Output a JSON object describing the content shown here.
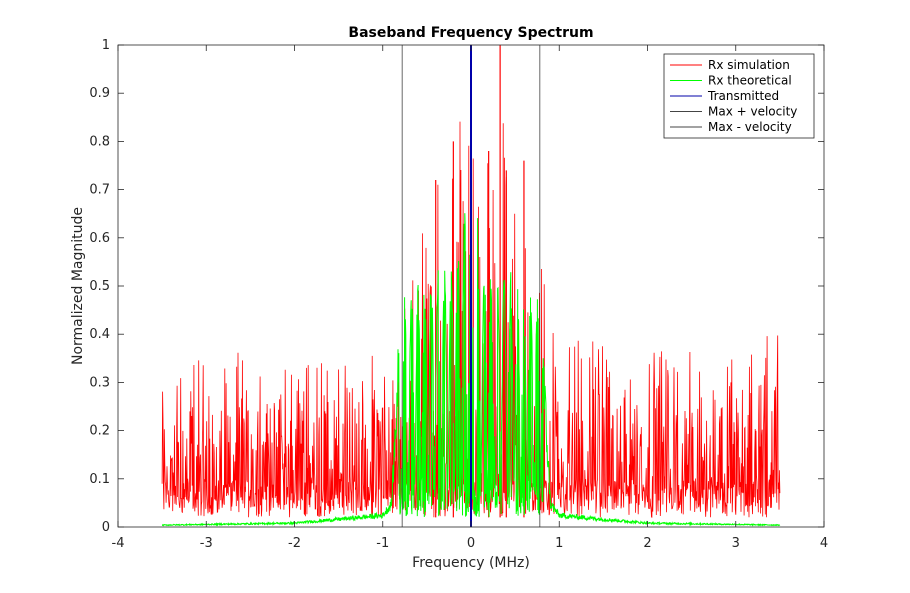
{
  "chart_data": {
    "type": "line",
    "title": "Baseband Frequency Spectrum",
    "xlabel": "Frequency (MHz)",
    "ylabel": "Normalized Magnitude",
    "xlim": [
      -4,
      4
    ],
    "ylim": [
      0,
      1
    ],
    "xticks": [
      -4,
      -3,
      -2,
      -1,
      0,
      1,
      2,
      3,
      4
    ],
    "yticks": [
      0,
      0.1,
      0.2,
      0.3,
      0.4,
      0.5,
      0.6,
      0.7,
      0.8,
      0.9,
      1
    ],
    "xtick_labels": [
      "-4",
      "-3",
      "-2",
      "-1",
      "0",
      "1",
      "2",
      "3",
      "4"
    ],
    "ytick_labels": [
      "0",
      "0.1",
      "0.2",
      "0.3",
      "0.4",
      "0.5",
      "0.6",
      "0.7",
      "0.8",
      "0.9",
      "1"
    ],
    "grid": false,
    "legend_position": "top-right",
    "series": [
      {
        "name": "Rx simulation",
        "color": "#ff0000",
        "style": "dense noisy spectrum",
        "x": [
          -3.5,
          -3.0,
          -2.5,
          -2.0,
          -1.5,
          -1.0,
          -0.8,
          -0.6,
          -0.4,
          -0.2,
          0.0,
          0.2,
          0.33,
          0.4,
          0.6,
          0.8,
          1.0,
          1.5,
          2.0,
          2.5,
          3.0,
          3.5
        ],
        "values": [
          0.31,
          0.38,
          0.37,
          0.36,
          0.35,
          0.38,
          0.62,
          0.7,
          0.72,
          0.8,
          0.95,
          0.78,
          1.0,
          0.74,
          0.76,
          0.55,
          0.4,
          0.39,
          0.37,
          0.37,
          0.38,
          0.41
        ],
        "noise_floor_range": [
          0.03,
          0.25
        ]
      },
      {
        "name": "Rx theoretical",
        "color": "#00ff00",
        "style": "comb of lobes between -0.8 and 0.8",
        "x": [
          -3.5,
          -2.0,
          -1.0,
          -0.9,
          -0.8,
          -0.6,
          -0.4,
          -0.2,
          0.0,
          0.15,
          0.3,
          0.45,
          0.6,
          0.75,
          0.8,
          0.9,
          1.0,
          2.0,
          3.5
        ],
        "values": [
          0.005,
          0.01,
          0.03,
          0.06,
          0.49,
          0.52,
          0.54,
          0.56,
          0.75,
          0.56,
          0.54,
          0.53,
          0.51,
          0.5,
          0.47,
          0.06,
          0.03,
          0.01,
          0.005
        ]
      },
      {
        "name": "Transmitted",
        "color": "#0000aa",
        "x": [
          0,
          0
        ],
        "values": [
          0,
          1
        ]
      },
      {
        "name": "Max + velocity",
        "color": "#444444",
        "x": [
          0.78,
          0.78
        ],
        "values": [
          0,
          1
        ]
      },
      {
        "name": "Max - velocity",
        "color": "#444444",
        "x": [
          -0.78,
          -0.78
        ],
        "values": [
          0,
          1
        ]
      }
    ]
  }
}
